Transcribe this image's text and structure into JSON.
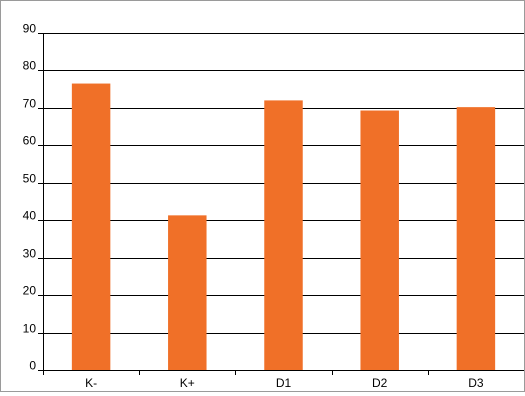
{
  "chart_data": {
    "type": "bar",
    "categories": [
      "K-",
      "K+",
      "D1",
      "D2",
      "D3"
    ],
    "values": [
      76.5,
      41.3,
      72.0,
      69.3,
      70.2
    ],
    "ylim": [
      0,
      90
    ],
    "yticks": [
      0,
      10,
      20,
      30,
      40,
      50,
      60,
      70,
      80,
      90
    ],
    "grid": true,
    "legend": "none",
    "bar_color": "#f07028",
    "grid_color": "#000000"
  }
}
